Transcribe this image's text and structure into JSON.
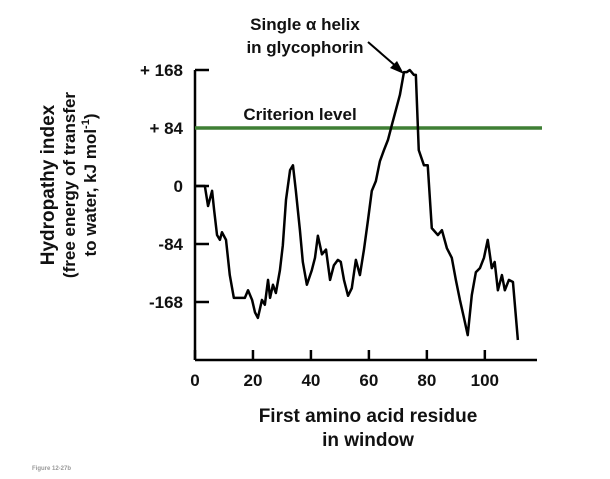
{
  "chart_data": {
    "type": "line",
    "annotation": [
      "Single α helix",
      "in glycophorin"
    ],
    "criterion": {
      "label": "Criterion level",
      "value": 84,
      "color": "#3f7f34"
    },
    "ylabel": [
      "Hydropathy index",
      "(free energy of transfer"
    ],
    "ylabel_last": {
      "text": "to water, kJ mol",
      "sup": "-1",
      "end": ")"
    },
    "xlabel": [
      "First amino acid residue",
      "in window"
    ],
    "figure_label": "Figure 12-27b",
    "xlim": [
      0,
      118
    ],
    "xticks": [
      0,
      20,
      40,
      60,
      80,
      100
    ],
    "ylim": [
      -252,
      168
    ],
    "yticks": [
      {
        "value": 168,
        "label": "+ 168"
      },
      {
        "value": 84,
        "label": "+ 84"
      },
      0,
      -84,
      -168
    ],
    "series": [
      {
        "color": "#000000",
        "x": [
          0,
          3.4,
          4.5,
          5.9,
          6.6,
          7.6,
          8.6,
          9.3,
          10.7,
          12,
          13.4,
          17.2,
          18.3,
          19.7,
          20.7,
          21.7,
          23.1,
          24.1,
          25.2,
          25.9,
          26.9,
          27.9,
          29.3,
          30.3,
          31.4,
          32.8,
          33.8,
          34.8,
          36.2,
          37.2,
          38.6,
          40.3,
          41.4,
          42.4,
          43.8,
          45.2,
          46.6,
          47.9,
          49.3,
          50.3,
          51.4,
          52.8,
          54.1,
          55.5,
          56.9,
          58.3,
          59.7,
          61,
          62.4,
          63.8,
          65.2,
          66.6,
          67.9,
          69.3,
          70.7,
          72.1,
          73.1,
          74.1,
          75.5,
          76.2,
          77.2,
          79,
          80.3,
          81.7,
          83.8,
          85.2,
          86.9,
          88.6,
          90,
          91.4,
          92.8,
          94.1,
          95.5,
          96.9,
          98.3,
          99.7,
          101,
          102.4,
          103.4,
          104.5,
          105.9,
          106.9,
          108.3,
          109.7,
          111.4
        ],
        "values": [
          0,
          0,
          -29,
          -7,
          -35,
          -71,
          -78,
          -67,
          -78,
          -129,
          -162,
          -162,
          -151,
          -165,
          -183,
          -191,
          -165,
          -172,
          -136,
          -162,
          -143,
          -155,
          -122,
          -86,
          -20,
          23,
          30,
          -7,
          -64,
          -110,
          -143,
          -122,
          -104,
          -72,
          -99,
          -92,
          -136,
          -115,
          -107,
          -110,
          -136,
          -159,
          -148,
          -107,
          -129,
          -92,
          -49,
          -7,
          7,
          36,
          52,
          67,
          88,
          110,
          132,
          165,
          165,
          168,
          161,
          161,
          52,
          30,
          30,
          -61,
          -71,
          -64,
          -90,
          -104,
          -136,
          -165,
          -191,
          -216,
          -158,
          -125,
          -119,
          -104,
          -78,
          -119,
          -110,
          -151,
          -129,
          -151,
          -136,
          -139,
          -223
        ]
      }
    ]
  }
}
